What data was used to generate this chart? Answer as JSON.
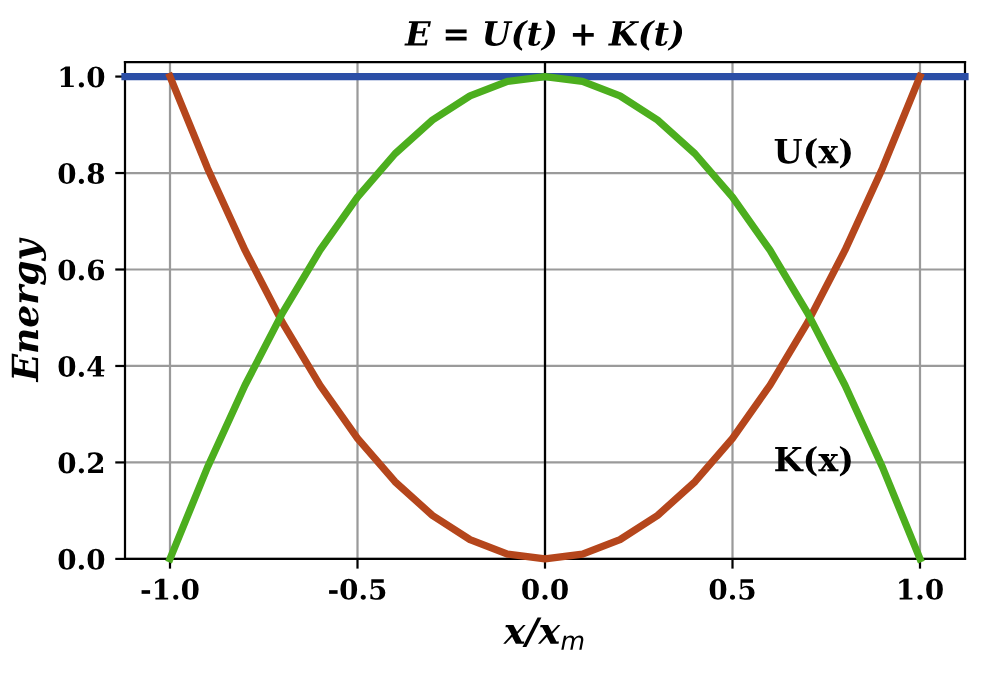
{
  "chart_data": {
    "type": "line",
    "title": "E = U(t) + K(t)",
    "xlabel": "x/x$_{m}$",
    "ylabel": "Energy",
    "xlim": [
      -1.12,
      1.12
    ],
    "ylim": [
      0,
      1.03
    ],
    "xticks": [
      {
        "value": -1,
        "label": "-1.0"
      },
      {
        "value": -0.5,
        "label": "-0.5"
      },
      {
        "value": 0,
        "label": "0.0"
      },
      {
        "value": 0.5,
        "label": "0.5"
      },
      {
        "value": 1,
        "label": "1.0"
      }
    ],
    "yticks": [
      {
        "value": 0,
        "label": "0.0"
      },
      {
        "value": 0.2,
        "label": "0.2"
      },
      {
        "value": 0.4,
        "label": "0.4"
      },
      {
        "value": 0.6,
        "label": "0.6"
      },
      {
        "value": 0.8,
        "label": "0.8"
      },
      {
        "value": 1,
        "label": "1.0"
      }
    ],
    "grid": true,
    "legend": false,
    "marker": "none",
    "line_style": "solid",
    "ref_lines": [
      {
        "axis": "x",
        "value": 0,
        "color": "#000000"
      }
    ],
    "series": [
      {
        "color": "#2b4ea6",
        "x": [
          -1.12,
          1.12
        ],
        "values": [
          1,
          1
        ]
      },
      {
        "color": "#b5461c",
        "x": [
          -1,
          -0.9,
          -0.8,
          -0.7,
          -0.6,
          -0.5,
          -0.4,
          -0.3,
          -0.2,
          -0.1,
          0,
          0.1,
          0.2,
          0.3,
          0.4,
          0.5,
          0.6,
          0.7,
          0.8,
          0.9,
          1
        ],
        "values": [
          1,
          0.81,
          0.64,
          0.49,
          0.36,
          0.25,
          0.16,
          0.09,
          0.04,
          0.01,
          0,
          0.01,
          0.04,
          0.09,
          0.16,
          0.25,
          0.36,
          0.49,
          0.64,
          0.81,
          1
        ]
      },
      {
        "color": "#4cae1e",
        "x": [
          -1,
          -0.9,
          -0.8,
          -0.7,
          -0.6,
          -0.5,
          -0.4,
          -0.3,
          -0.2,
          -0.1,
          0,
          0.1,
          0.2,
          0.3,
          0.4,
          0.5,
          0.6,
          0.7,
          0.8,
          0.9,
          1
        ],
        "values": [
          0,
          0.19,
          0.36,
          0.51,
          0.64,
          0.75,
          0.84,
          0.91,
          0.96,
          0.99,
          1,
          0.99,
          0.96,
          0.91,
          0.84,
          0.75,
          0.64,
          0.51,
          0.36,
          0.19,
          0
        ]
      }
    ],
    "annotations": [
      "U(x)",
      "K(x)"
    ]
  }
}
